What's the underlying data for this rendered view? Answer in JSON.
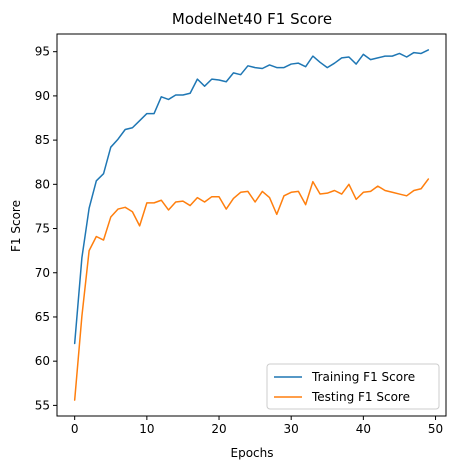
{
  "chart_data": {
    "type": "line",
    "title": "ModelNet40 F1 Score",
    "xlabel": "Epochs",
    "ylabel": "F1 Score",
    "xlim": [
      -2.45,
      51.45
    ],
    "ylim": [
      53.8,
      97.0
    ],
    "xticks": [
      0,
      10,
      20,
      30,
      40,
      50
    ],
    "yticks": [
      55,
      60,
      65,
      70,
      75,
      80,
      85,
      90,
      95
    ],
    "grid": false,
    "legend": {
      "position": "lower right"
    },
    "x": [
      0,
      1,
      2,
      3,
      4,
      5,
      6,
      7,
      8,
      9,
      10,
      11,
      12,
      13,
      14,
      15,
      16,
      17,
      18,
      19,
      20,
      21,
      22,
      23,
      24,
      25,
      26,
      27,
      28,
      29,
      30,
      31,
      32,
      33,
      34,
      35,
      36,
      37,
      38,
      39,
      40,
      41,
      42,
      43,
      44,
      45,
      46,
      47,
      48,
      49
    ],
    "series": [
      {
        "name": "Training F1 Score",
        "color": "#1f77b4",
        "values": [
          62.0,
          71.7,
          77.3,
          80.4,
          81.2,
          84.2,
          85.1,
          86.2,
          86.4,
          87.2,
          88.0,
          88.0,
          89.9,
          89.6,
          90.1,
          90.1,
          90.3,
          91.9,
          91.1,
          91.9,
          91.8,
          91.6,
          92.6,
          92.4,
          93.4,
          93.2,
          93.1,
          93.5,
          93.2,
          93.2,
          93.6,
          93.7,
          93.3,
          94.5,
          93.8,
          93.2,
          93.7,
          94.3,
          94.4,
          93.6,
          94.7,
          94.1,
          94.3,
          94.5,
          94.5,
          94.8,
          94.4,
          94.9,
          94.8,
          95.2
        ]
      },
      {
        "name": "Testing F1 Score",
        "color": "#ff7f0e",
        "values": [
          55.6,
          65.1,
          72.5,
          74.1,
          73.7,
          76.3,
          77.2,
          77.4,
          76.9,
          75.3,
          77.9,
          77.9,
          78.2,
          77.1,
          78.0,
          78.1,
          77.6,
          78.5,
          78.0,
          78.6,
          78.6,
          77.2,
          78.4,
          79.1,
          79.2,
          78.0,
          79.2,
          78.5,
          76.6,
          78.7,
          79.1,
          79.2,
          77.7,
          80.3,
          78.9,
          79.0,
          79.3,
          78.9,
          80.0,
          78.3,
          79.1,
          79.2,
          79.8,
          79.3,
          79.1,
          78.9,
          78.7,
          79.3,
          79.5,
          80.6
        ]
      }
    ]
  }
}
